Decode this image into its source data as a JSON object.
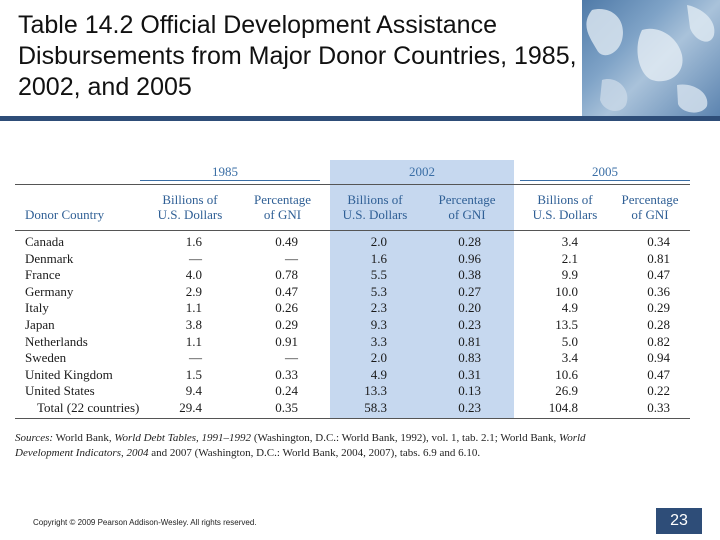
{
  "slide_title": "Table 14.2 Official Development Assistance Disbursements from Major Donor Countries, 1985, 2002, and 2005",
  "table": {
    "years": [
      "1985",
      "2002",
      "2005"
    ],
    "header_donor": "Donor Country",
    "header_billions_1": "Billions of",
    "header_billions_2": "U.S. Dollars",
    "header_pct_1": "Percentage",
    "header_pct_2": "of GNI",
    "rows": [
      {
        "country": "Canada",
        "v": [
          "1.6",
          "0.49",
          "2.0",
          "0.28",
          "3.4",
          "0.34"
        ]
      },
      {
        "country": "Denmark",
        "v": [
          "—",
          "—",
          "1.6",
          "0.96",
          "2.1",
          "0.81"
        ]
      },
      {
        "country": "France",
        "v": [
          "4.0",
          "0.78",
          "5.5",
          "0.38",
          "9.9",
          "0.47"
        ]
      },
      {
        "country": "Germany",
        "v": [
          "2.9",
          "0.47",
          "5.3",
          "0.27",
          "10.0",
          "0.36"
        ]
      },
      {
        "country": "Italy",
        "v": [
          "1.1",
          "0.26",
          "2.3",
          "0.20",
          "4.9",
          "0.29"
        ]
      },
      {
        "country": "Japan",
        "v": [
          "3.8",
          "0.29",
          "9.3",
          "0.23",
          "13.5",
          "0.28"
        ]
      },
      {
        "country": "Netherlands",
        "v": [
          "1.1",
          "0.91",
          "3.3",
          "0.81",
          "5.0",
          "0.82"
        ]
      },
      {
        "country": "Sweden",
        "v": [
          "—",
          "—",
          "2.0",
          "0.83",
          "3.4",
          "0.94"
        ]
      },
      {
        "country": "United Kingdom",
        "v": [
          "1.5",
          "0.33",
          "4.9",
          "0.31",
          "10.6",
          "0.47"
        ]
      },
      {
        "country": "United States",
        "v": [
          "9.4",
          "0.24",
          "13.3",
          "0.13",
          "26.9",
          "0.22"
        ]
      },
      {
        "country": "Total (22 countries)",
        "v": [
          "29.4",
          "0.35",
          "58.3",
          "0.23",
          "104.8",
          "0.33"
        ]
      }
    ]
  },
  "source": {
    "label": "Sources:",
    "t1": "World Bank,",
    "i1": "World Debt Tables, 1991–1992",
    "t2": "(Washington, D.C.: World Bank, 1992), vol. 1, tab. 2.1; World Bank,",
    "i2": "World Development Indicators, 2004",
    "t3": "and 2007 (Washington, D.C.: World Bank, 2004, 2007), tabs. 6.9 and 6.10."
  },
  "copyright": "Copyright © 2009 Pearson Addison-Wesley. All rights reserved.",
  "page_number": "23",
  "colors": {
    "accent_band": "#c6d8ef",
    "header_text": "#2f5f95",
    "rule": "#2e4d78"
  },
  "icons": {
    "corner_image": "world-map-image"
  }
}
